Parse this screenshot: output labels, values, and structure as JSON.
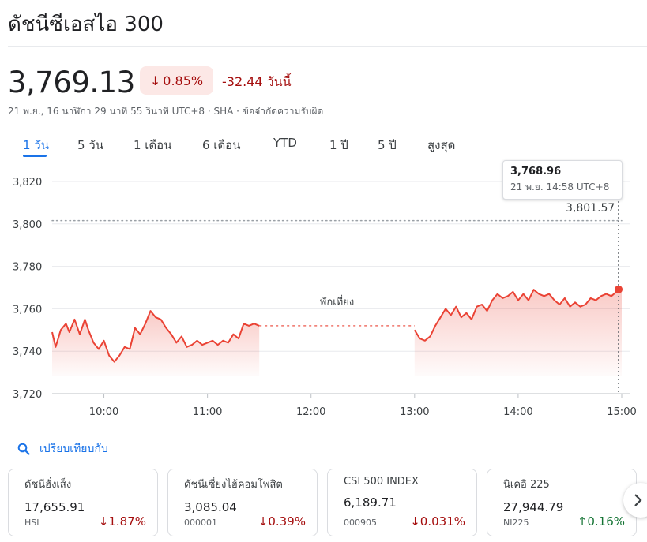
{
  "header": {
    "title": "ดัชนีซีเอสไอ 300",
    "price": "3,769.13",
    "percent_change": "0.85%",
    "change_text": "-32.44 วันนี้",
    "meta": "21 พ.ย., 16 นาฬิกา 29 นาที 55 วินาที UTC+8 · SHA · ข้อจำกัดความรับผิด",
    "down_color": "#a50e0e"
  },
  "tabs": [
    {
      "label": "1 วัน",
      "active": true
    },
    {
      "label": "5 วัน",
      "active": false
    },
    {
      "label": "1 เดือน",
      "active": false
    },
    {
      "label": "6 เดือน",
      "active": false
    },
    {
      "label": "YTD",
      "active": false
    },
    {
      "label": "1 ปี",
      "active": false
    },
    {
      "label": "5 ปี",
      "active": false
    },
    {
      "label": "สูงสุด",
      "active": false
    }
  ],
  "tooltip": {
    "value": "3,768.96",
    "time": "21 พ.ย. 14:58 UTC+8"
  },
  "chart_data": {
    "type": "line",
    "title": "",
    "xlabel": "",
    "ylabel": "",
    "ylim": [
      3720,
      3820
    ],
    "y_ticks": [
      "3,820",
      "3,800",
      "3,780",
      "3,760",
      "3,740",
      "3,720"
    ],
    "y_tick_values": [
      3820,
      3800,
      3780,
      3760,
      3740,
      3720
    ],
    "x_ticks": [
      "10:00",
      "11:00",
      "12:00",
      "13:00",
      "14:00",
      "15:00"
    ],
    "x_tick_values": [
      "10:00",
      "11:00",
      "12:00",
      "13:00",
      "14:00",
      "15:00"
    ],
    "xlim": [
      "09:30",
      "15:00"
    ],
    "previous_close": 3801.57,
    "previous_close_label": "3,801.57",
    "lunch_break_label": "พักเที่ยง",
    "lunch_break": [
      "11:30",
      "13:00"
    ],
    "grid": true,
    "line_color": "#ea4335",
    "morning_session": [
      [
        "09:30",
        3749
      ],
      [
        "09:32",
        3742
      ],
      [
        "09:35",
        3750
      ],
      [
        "09:38",
        3753
      ],
      [
        "09:40",
        3749
      ],
      [
        "09:43",
        3755
      ],
      [
        "09:46",
        3748
      ],
      [
        "09:49",
        3755
      ],
      [
        "09:51",
        3750
      ],
      [
        "09:54",
        3744
      ],
      [
        "09:57",
        3741
      ],
      [
        "10:00",
        3745
      ],
      [
        "10:03",
        3738
      ],
      [
        "10:06",
        3735
      ],
      [
        "10:09",
        3738
      ],
      [
        "10:12",
        3742
      ],
      [
        "10:15",
        3741
      ],
      [
        "10:18",
        3751
      ],
      [
        "10:21",
        3748
      ],
      [
        "10:24",
        3753
      ],
      [
        "10:27",
        3759
      ],
      [
        "10:30",
        3756
      ],
      [
        "10:33",
        3755
      ],
      [
        "10:36",
        3751
      ],
      [
        "10:39",
        3748
      ],
      [
        "10:42",
        3744
      ],
      [
        "10:45",
        3747
      ],
      [
        "10:48",
        3742
      ],
      [
        "10:51",
        3743
      ],
      [
        "10:54",
        3745
      ],
      [
        "10:57",
        3743
      ],
      [
        "11:00",
        3744
      ],
      [
        "11:03",
        3745
      ],
      [
        "11:06",
        3743
      ],
      [
        "11:09",
        3745
      ],
      [
        "11:12",
        3744
      ],
      [
        "11:15",
        3748
      ],
      [
        "11:18",
        3746
      ],
      [
        "11:21",
        3753
      ],
      [
        "11:24",
        3752
      ],
      [
        "11:27",
        3753
      ],
      [
        "11:30",
        3752
      ]
    ],
    "afternoon_session": [
      [
        "13:00",
        3750
      ],
      [
        "13:03",
        3746
      ],
      [
        "13:06",
        3745
      ],
      [
        "13:09",
        3747
      ],
      [
        "13:12",
        3752
      ],
      [
        "13:15",
        3756
      ],
      [
        "13:18",
        3760
      ],
      [
        "13:21",
        3757
      ],
      [
        "13:24",
        3761
      ],
      [
        "13:27",
        3756
      ],
      [
        "13:30",
        3758
      ],
      [
        "13:33",
        3755
      ],
      [
        "13:36",
        3761
      ],
      [
        "13:39",
        3762
      ],
      [
        "13:42",
        3759
      ],
      [
        "13:45",
        3764
      ],
      [
        "13:48",
        3767
      ],
      [
        "13:51",
        3765
      ],
      [
        "13:54",
        3766
      ],
      [
        "13:57",
        3768
      ],
      [
        "14:00",
        3764
      ],
      [
        "14:03",
        3767
      ],
      [
        "14:06",
        3764
      ],
      [
        "14:09",
        3769
      ],
      [
        "14:12",
        3767
      ],
      [
        "14:15",
        3766
      ],
      [
        "14:18",
        3767
      ],
      [
        "14:21",
        3764
      ],
      [
        "14:24",
        3762
      ],
      [
        "14:27",
        3765
      ],
      [
        "14:30",
        3761
      ],
      [
        "14:33",
        3763
      ],
      [
        "14:36",
        3761
      ],
      [
        "14:39",
        3762
      ],
      [
        "14:42",
        3765
      ],
      [
        "14:45",
        3764
      ],
      [
        "14:48",
        3766
      ],
      [
        "14:51",
        3767
      ],
      [
        "14:54",
        3766
      ],
      [
        "14:57",
        3768
      ],
      [
        "14:58",
        3768.96
      ],
      [
        "15:00",
        3769.13
      ]
    ]
  },
  "compare": {
    "label": "เปรียบเทียบกับ",
    "accent": "#1a73e8"
  },
  "cards": [
    {
      "name": "ดัชนีฮั่งเส็ง",
      "price": "17,655.91",
      "symbol": "HSI",
      "change": "1.87%",
      "direction": "down"
    },
    {
      "name": "ดัชนีเซี่ยงไฮ้คอมโพสิต",
      "price": "3,085.04",
      "symbol": "000001",
      "change": "0.39%",
      "direction": "down"
    },
    {
      "name": "CSI 500 INDEX",
      "price": "6,189.71",
      "symbol": "000905",
      "change": "0.031%",
      "direction": "down"
    },
    {
      "name": "นิเคอิ 225",
      "price": "27,944.79",
      "symbol": "NI225",
      "change": "0.16%",
      "direction": "up"
    }
  ]
}
